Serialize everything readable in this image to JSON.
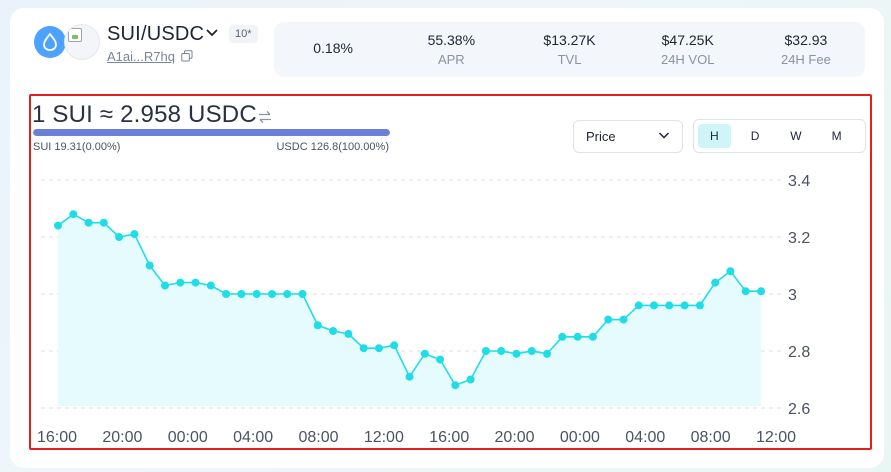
{
  "pair": {
    "name": "SUI/USDC",
    "fee_badge": "10*",
    "address": "A1ai...R7hq"
  },
  "stats": [
    {
      "value": "0.18%",
      "label": ""
    },
    {
      "value": "55.38%",
      "label": "APR"
    },
    {
      "value": "$13.27K",
      "label": "TVL"
    },
    {
      "value": "$47.25K",
      "label": "24H VOL"
    },
    {
      "value": "$32.93",
      "label": "24H Fee"
    }
  ],
  "rate": {
    "text": "1 SUI ≈ 2.958 USDC",
    "ratio_fraction": 1.0,
    "left_label": "SUI 19.31(0.00%)",
    "right_label": "USDC 126.8(100.00%)"
  },
  "controls": {
    "price_select": "Price",
    "periods": [
      "H",
      "D",
      "W",
      "M"
    ],
    "active_period": "H"
  },
  "colors": {
    "line": "#1fdde6",
    "area": "#e6fbfd",
    "accent_bar": "#6b7fd7",
    "highlight_border": "#e5201b"
  },
  "chart_data": {
    "type": "area",
    "title": "",
    "xlabel": "",
    "ylabel": "",
    "ylim": [
      2.6,
      3.4
    ],
    "yticks": [
      "3.4",
      "3.2",
      "3",
      "2.8",
      "2.6"
    ],
    "xticks": [
      "16:00",
      "20:00",
      "00:00",
      "04:00",
      "08:00",
      "12:00",
      "16:00",
      "20:00",
      "00:00",
      "04:00",
      "08:00",
      "12:00"
    ],
    "x": [
      0,
      1,
      2,
      3,
      4,
      5,
      6,
      7,
      8,
      9,
      10,
      11,
      12,
      13,
      14,
      15,
      16,
      17,
      18,
      19,
      20,
      21,
      22,
      23,
      24,
      25,
      26,
      27,
      28,
      29,
      30,
      31,
      32,
      33,
      34,
      35,
      36,
      37,
      38,
      39,
      40,
      41,
      42,
      43,
      44,
      45,
      46
    ],
    "series": [
      {
        "values": [
          3.24,
          3.28,
          3.25,
          3.25,
          3.2,
          3.21,
          3.1,
          3.03,
          3.04,
          3.04,
          3.03,
          3.0,
          3.0,
          3.0,
          3.0,
          3.0,
          3.0,
          2.89,
          2.87,
          2.86,
          2.81,
          2.81,
          2.82,
          2.71,
          2.79,
          2.77,
          2.68,
          2.7,
          2.8,
          2.8,
          2.79,
          2.8,
          2.79,
          2.85,
          2.85,
          2.85,
          2.91,
          2.91,
          2.96,
          2.96,
          2.96,
          2.96,
          2.96,
          3.04,
          3.08,
          3.01,
          3.01
        ]
      }
    ]
  }
}
